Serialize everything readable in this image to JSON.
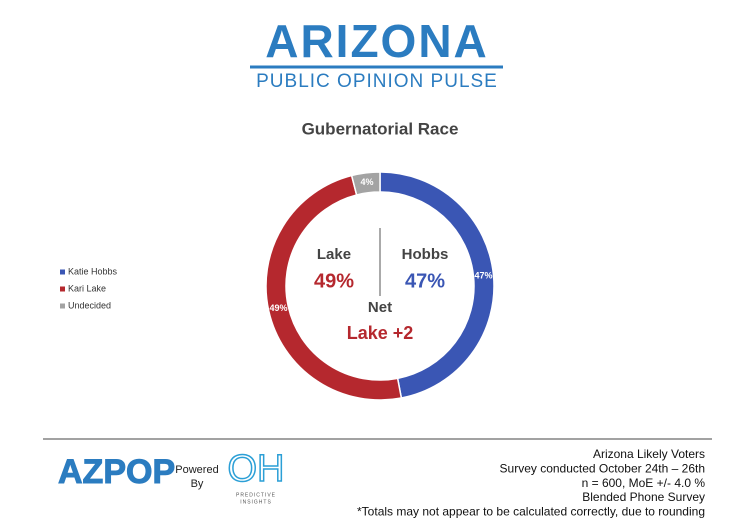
{
  "header": {
    "title": "ARIZONA",
    "subtitle": "PUBLIC OPINION PULSE"
  },
  "chart_data": {
    "type": "pie",
    "donut": true,
    "title": "Gubernatorial Race",
    "categories": [
      "Katie Hobbs",
      "Kari Lake",
      "Undecided"
    ],
    "values": [
      47,
      49,
      4
    ],
    "value_labels": [
      "47%",
      "49%",
      "4%"
    ],
    "colors": [
      "#3a56b4",
      "#b5282e",
      "#a3a3a3"
    ],
    "legend": "left",
    "annotations": {
      "left_name": "Lake",
      "right_name": "Hobbs",
      "net_label": "Net",
      "net_value": "Lake +2"
    }
  },
  "footer": {
    "logo": "AZPOP",
    "powered": "Powered",
    "by": "By",
    "partner_logo": "OH",
    "partner_line1": "PREDICTIVE",
    "partner_line2": "INSIGHTS",
    "notes": [
      "Arizona Likely Voters",
      "Survey conducted October 24th – 26th",
      "n = 600, MoE +/- 4.0 %",
      "Blended Phone Survey",
      "*Totals may not appear to be calculated correctly, due to rounding"
    ]
  }
}
